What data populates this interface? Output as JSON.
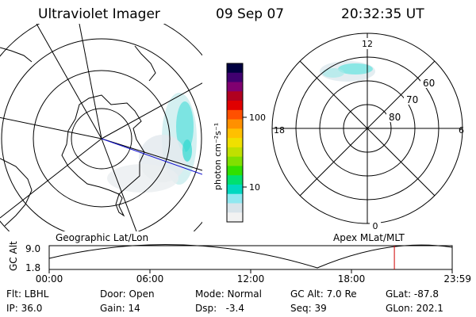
{
  "header": {
    "title": "Ultraviolet Imager",
    "date": "09 Sep 07",
    "time": "20:32:35 UT"
  },
  "geo_panel": {
    "label": "Geographic Lat/Lon"
  },
  "apex_panel": {
    "label": "Apex MLat/MLT",
    "mlt_labels": {
      "top": "12",
      "bottom": "0",
      "left": "18",
      "right": "6"
    },
    "lat_labels": [
      "60",
      "70",
      "80"
    ]
  },
  "colorbar": {
    "unit_label": "photon cm⁻²s⁻¹",
    "ticks": [
      "100",
      "10"
    ],
    "colors": [
      "#000040",
      "#400070",
      "#800070",
      "#b00020",
      "#e00000",
      "#ff5000",
      "#ff9000",
      "#ffc000",
      "#f0e000",
      "#c0e000",
      "#80e000",
      "#30e000",
      "#00e070",
      "#00d8c0",
      "#90e8f0",
      "#d8e4ea",
      "#f2f2f2"
    ]
  },
  "altitude_strip": {
    "ylabel": "GC Alt",
    "ymax": "9.0",
    "ymin": "1.8",
    "xticks": [
      "00:00",
      "06:00",
      "12:00",
      "18:00",
      "23:59"
    ],
    "marker_hour": 20.54,
    "marker_color": "#d00000"
  },
  "info": {
    "flt": "Flt: LBHL",
    "ip": "IP: 36.0",
    "door": "Door: Open",
    "gain": "Gain: 14",
    "mode": "Mode: Normal",
    "dsp": "Dsp:   -3.4",
    "gcalt": "GC Alt: 7.0 Re",
    "seq": "Seq: 39",
    "glat": "GLat: -87.8",
    "glon": "GLon: 202.1"
  }
}
